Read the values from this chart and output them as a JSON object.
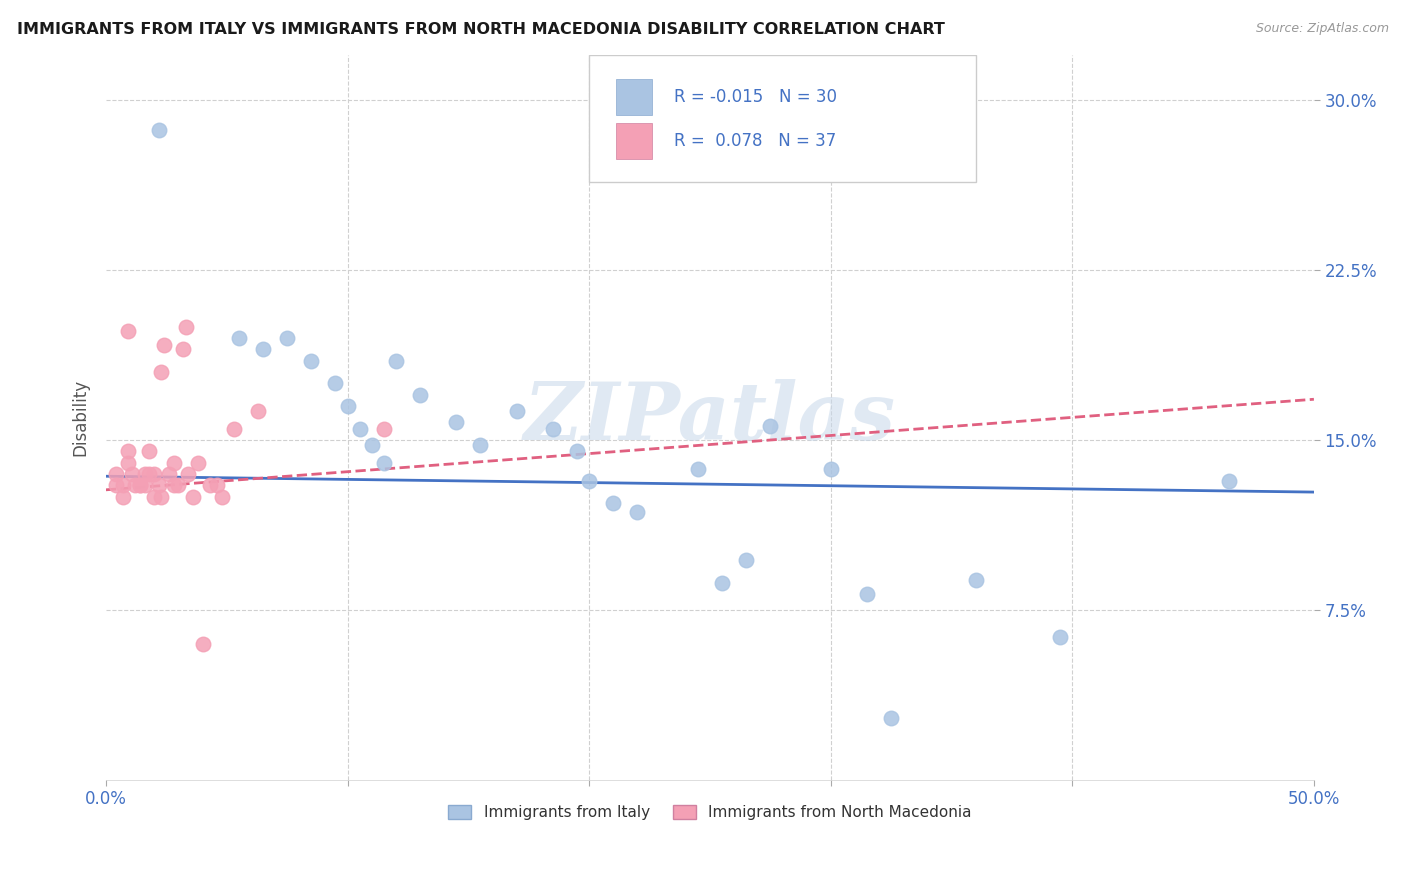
{
  "title": "IMMIGRANTS FROM ITALY VS IMMIGRANTS FROM NORTH MACEDONIA DISABILITY CORRELATION CHART",
  "source": "Source: ZipAtlas.com",
  "ylabel": "Disability",
  "yticks": [
    0.075,
    0.15,
    0.225,
    0.3
  ],
  "ytick_labels": [
    "7.5%",
    "15.0%",
    "22.5%",
    "30.0%"
  ],
  "xlim": [
    0,
    0.5
  ],
  "ylim": [
    0.0,
    0.32
  ],
  "legend_italy_R": "-0.015",
  "legend_italy_N": "30",
  "legend_macedonia_R": "0.078",
  "legend_macedonia_N": "37",
  "italy_color": "#aac4e2",
  "macedonia_color": "#f4a0b5",
  "italy_line_color": "#4472c4",
  "macedonia_line_color": "#e06080",
  "watermark_color": "#c8d8ea",
  "italy_line_x0": 0.0,
  "italy_line_y0": 0.134,
  "italy_line_x1": 0.5,
  "italy_line_y1": 0.127,
  "macedonia_line_x0": 0.0,
  "macedonia_line_y0": 0.128,
  "macedonia_line_x1": 0.5,
  "macedonia_line_y1": 0.168,
  "italy_x": [
    0.022,
    0.055,
    0.065,
    0.075,
    0.085,
    0.095,
    0.1,
    0.105,
    0.11,
    0.115,
    0.12,
    0.13,
    0.145,
    0.155,
    0.17,
    0.185,
    0.195,
    0.2,
    0.21,
    0.22,
    0.245,
    0.255,
    0.265,
    0.275,
    0.3,
    0.315,
    0.325,
    0.36,
    0.395,
    0.465
  ],
  "italy_y": [
    0.287,
    0.195,
    0.19,
    0.195,
    0.185,
    0.175,
    0.165,
    0.155,
    0.148,
    0.14,
    0.185,
    0.17,
    0.158,
    0.148,
    0.163,
    0.155,
    0.145,
    0.132,
    0.122,
    0.118,
    0.137,
    0.087,
    0.097,
    0.156,
    0.137,
    0.082,
    0.027,
    0.088,
    0.063,
    0.132
  ],
  "macedonia_x": [
    0.004,
    0.004,
    0.007,
    0.007,
    0.009,
    0.009,
    0.009,
    0.011,
    0.012,
    0.014,
    0.014,
    0.016,
    0.016,
    0.018,
    0.018,
    0.02,
    0.02,
    0.022,
    0.023,
    0.023,
    0.024,
    0.026,
    0.028,
    0.028,
    0.03,
    0.032,
    0.033,
    0.034,
    0.036,
    0.038,
    0.04,
    0.043,
    0.046,
    0.048,
    0.053,
    0.063,
    0.115
  ],
  "macedonia_y": [
    0.135,
    0.13,
    0.13,
    0.125,
    0.198,
    0.145,
    0.14,
    0.135,
    0.13,
    0.13,
    0.13,
    0.13,
    0.135,
    0.135,
    0.145,
    0.135,
    0.125,
    0.13,
    0.125,
    0.18,
    0.192,
    0.135,
    0.14,
    0.13,
    0.13,
    0.19,
    0.2,
    0.135,
    0.125,
    0.14,
    0.06,
    0.13,
    0.13,
    0.125,
    0.155,
    0.163,
    0.155
  ]
}
